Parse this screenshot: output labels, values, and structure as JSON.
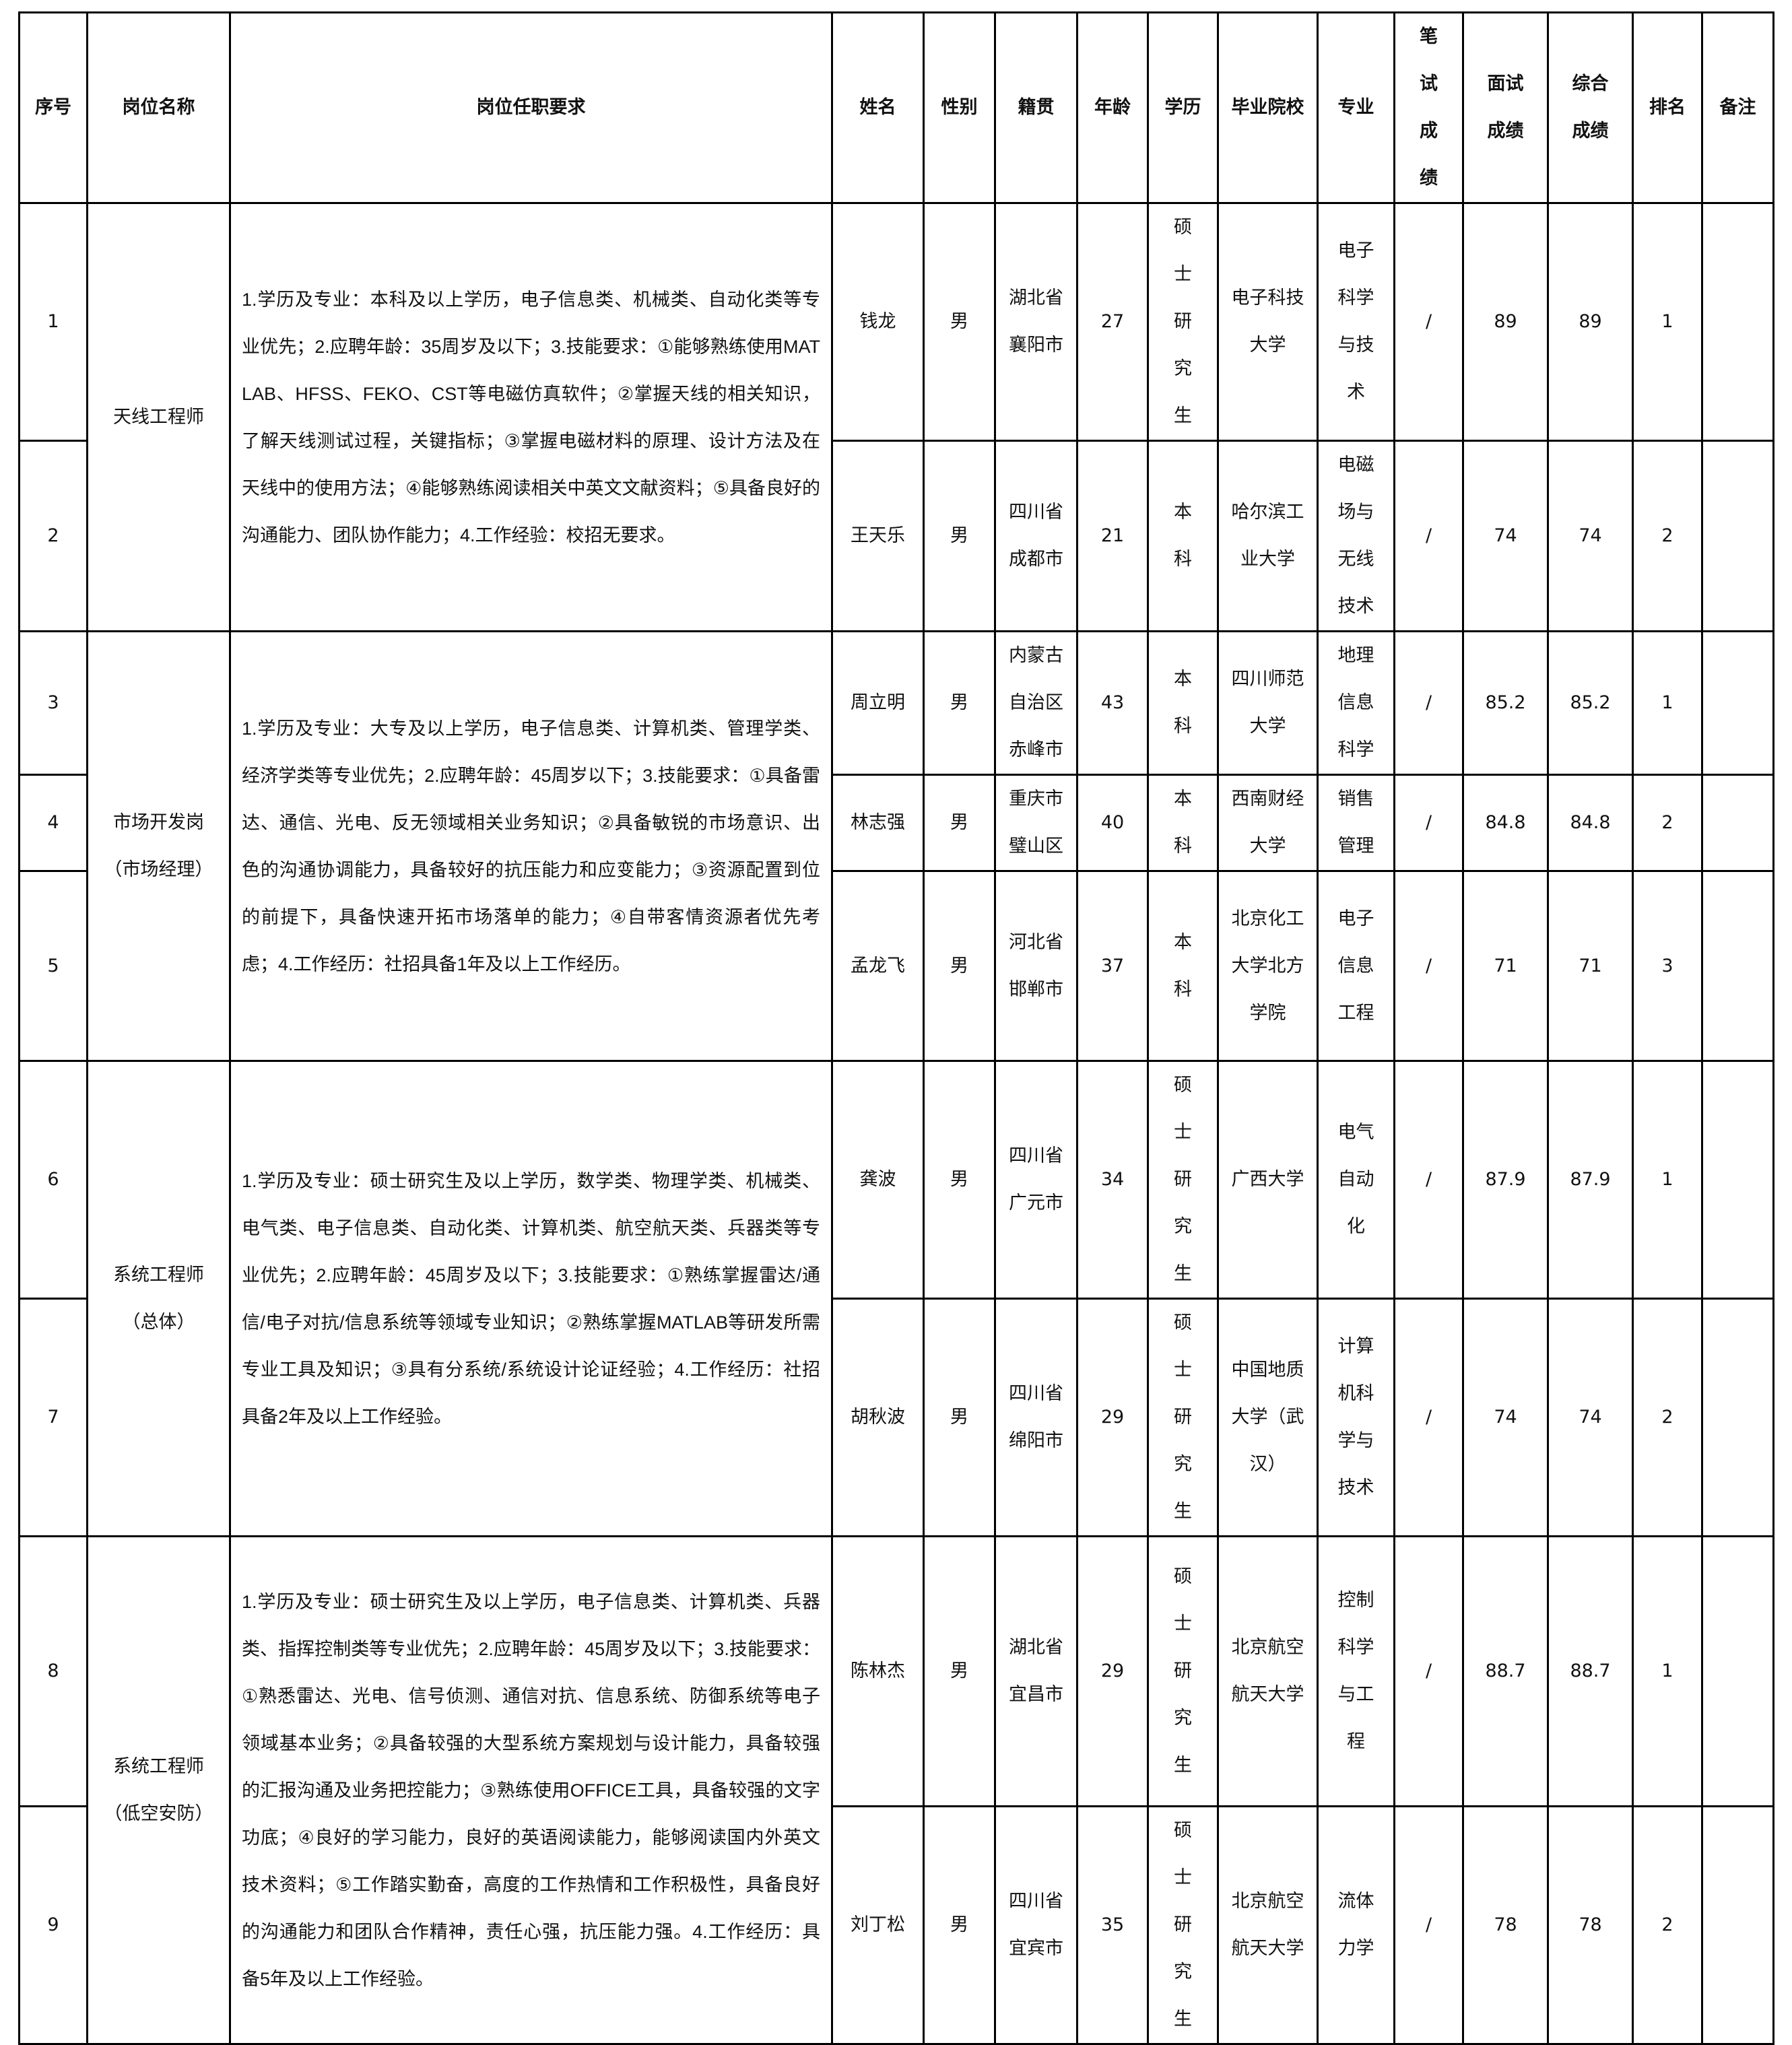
{
  "headers": [
    "序号",
    "岗位名称",
    "岗位任职要求",
    "姓名",
    "性别",
    "籍贯",
    "年龄",
    "学历",
    "毕业院校",
    "专业",
    "笔试成绩",
    "面试成绩",
    "综合成绩",
    "排名",
    "备注"
  ],
  "groups": [
    {
      "position": "天线工程师",
      "requirements": "1.学历及专业：本科及以上学历，电子信息类、机械类、自动化类等专业优先；2.应聘年龄：35周岁及以下；3.技能要求：①能够熟练使用MATLAB、HFSS、FEKO、CST等电磁仿真软件；②掌握天线的相关知识，了解天线测试过程，关键指标；③掌握电磁材料的原理、设计方法及在天线中的使用方法；④能够熟练阅读相关中英文文献资料；⑤具备良好的沟通能力、团队协作能力；4.工作经验：校招无要求。",
      "rows": [
        {
          "no": "1",
          "name": "钱龙",
          "gender": "男",
          "origin": "湖北省襄阳市",
          "age": "27",
          "edu": "硕士研究生",
          "school": "电子科技大学",
          "major": "电子科学与技术",
          "written": "/",
          "interview": "89",
          "total": "89",
          "rank": "1",
          "remark": ""
        },
        {
          "no": "2",
          "name": "王天乐",
          "gender": "男",
          "origin": "四川省成都市",
          "age": "21",
          "edu": "本科",
          "school": "哈尔滨工业大学",
          "major": "电磁场与无线技术",
          "written": "/",
          "interview": "74",
          "total": "74",
          "rank": "2",
          "remark": ""
        }
      ]
    },
    {
      "position": "市场开发岗（市场经理）",
      "requirements": "1.学历及专业：大专及以上学历，电子信息类、计算机类、管理学类、经济学类等专业优先；2.应聘年龄：45周岁以下；3.技能要求：①具备雷达、通信、光电、反无领域相关业务知识；②具备敏锐的市场意识、出色的沟通协调能力，具备较好的抗压能力和应变能力；③资源配置到位的前提下，具备快速开拓市场落单的能力；④自带客情资源者优先考虑；4.工作经历：社招具备1年及以上工作经历。",
      "rows": [
        {
          "no": "3",
          "name": "周立明",
          "gender": "男",
          "origin": "内蒙古自治区赤峰市",
          "age": "43",
          "edu": "本科",
          "school": "四川师范大学",
          "major": "地理信息科学",
          "written": "/",
          "interview": "85.2",
          "total": "85.2",
          "rank": "1",
          "remark": ""
        },
        {
          "no": "4",
          "name": "林志强",
          "gender": "男",
          "origin": "重庆市璧山区",
          "age": "40",
          "edu": "本科",
          "school": "西南财经大学",
          "major": "销售管理",
          "written": "/",
          "interview": "84.8",
          "total": "84.8",
          "rank": "2",
          "remark": ""
        },
        {
          "no": "5",
          "name": "孟龙飞",
          "gender": "男",
          "origin": "河北省邯郸市",
          "age": "37",
          "edu": "本科",
          "school": "北京化工大学北方学院",
          "major": "电子信息工程",
          "written": "/",
          "interview": "71",
          "total": "71",
          "rank": "3",
          "remark": ""
        }
      ]
    },
    {
      "position": "系统工程师（总体）",
      "requirements": "1.学历及专业：硕士研究生及以上学历，数学类、物理学类、机械类、电气类、电子信息类、自动化类、计算机类、航空航天类、兵器类等专业优先；2.应聘年龄：45周岁及以下；3.技能要求：①熟练掌握雷达/通信/电子对抗/信息系统等领域专业知识；②熟练掌握MATLAB等研发所需专业工具及知识；③具有分系统/系统设计论证经验；4.工作经历：社招具备2年及以上工作经验。",
      "rows": [
        {
          "no": "6",
          "name": "龚波",
          "gender": "男",
          "origin": "四川省广元市",
          "age": "34",
          "edu": "硕士研究生",
          "school": "广西大学",
          "major": "电气自动化",
          "written": "/",
          "interview": "87.9",
          "total": "87.9",
          "rank": "1",
          "remark": ""
        },
        {
          "no": "7",
          "name": "胡秋波",
          "gender": "男",
          "origin": "四川省绵阳市",
          "age": "29",
          "edu": "硕士研究生",
          "school": "中国地质大学（武汉）",
          "major": "计算机科学与技术",
          "written": "/",
          "interview": "74",
          "total": "74",
          "rank": "2",
          "remark": ""
        }
      ]
    },
    {
      "position": "系统工程师（低空安防）",
      "requirements": "1.学历及专业：硕士研究生及以上学历，电子信息类、计算机类、兵器类、指挥控制类等专业优先；2.应聘年龄：45周岁及以下；3.技能要求：①熟悉雷达、光电、信号侦测、通信对抗、信息系统、防御系统等电子领域基本业务；②具备较强的大型系统方案规划与设计能力，具备较强的汇报沟通及业务把控能力；③熟练使用OFFICE工具，具备较强的文字功底；④良好的学习能力，良好的英语阅读能力，能够阅读国内外英文技术资料；⑤工作踏实勤奋，高度的工作热情和工作积极性，具备良好的沟通能力和团队合作精神，责任心强，抗压能力强。4.工作经历：具备5年及以上工作经验。",
      "rows": [
        {
          "no": "8",
          "name": "陈林杰",
          "gender": "男",
          "origin": "湖北省宜昌市",
          "age": "29",
          "edu": "硕士研究生",
          "school": "北京航空航天大学",
          "major": "控制科学与工程",
          "written": "/",
          "interview": "88.7",
          "total": "88.7",
          "rank": "1",
          "remark": ""
        },
        {
          "no": "9",
          "name": "刘丁松",
          "gender": "男",
          "origin": "四川省宜宾市",
          "age": "35",
          "edu": "硕士研究生",
          "school": "北京航空航天大学",
          "major": "流体力学",
          "written": "/",
          "interview": "78",
          "total": "78",
          "rank": "2",
          "remark": ""
        }
      ]
    }
  ]
}
